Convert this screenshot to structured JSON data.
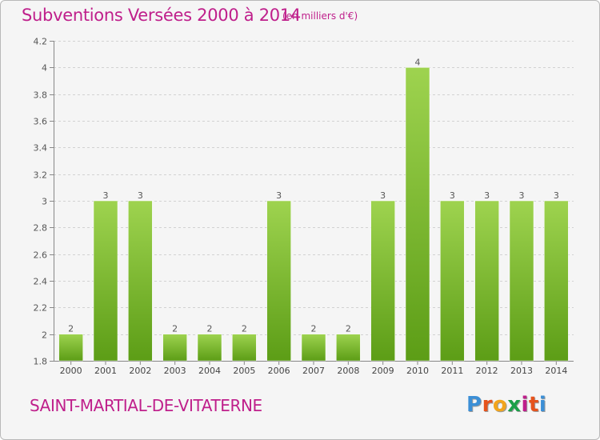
{
  "header": {
    "title": "Subventions Versées 2000 à 2014",
    "unit": "(en milliers d'€)"
  },
  "footer": {
    "commune": "SAINT-MARTIAL-DE-VITATERNE",
    "logo_letters": [
      "P",
      "r",
      "o",
      "x",
      "i",
      "t",
      "i"
    ],
    "logo_colors": [
      "#3c8fd6",
      "#e6531c",
      "#f2a51c",
      "#1c9f49",
      "#bf1f8b",
      "#e6531c",
      "#3c8fd6"
    ]
  },
  "chart_data": {
    "type": "bar",
    "categories": [
      "2000",
      "2001",
      "2002",
      "2003",
      "2004",
      "2005",
      "2006",
      "2007",
      "2008",
      "2009",
      "2010",
      "2011",
      "2012",
      "2013",
      "2014"
    ],
    "values": [
      2,
      3,
      3,
      2,
      2,
      2,
      3,
      2,
      2,
      3,
      4,
      3,
      3,
      3,
      3
    ],
    "data_labels": [
      "2",
      "3",
      "3",
      "2",
      "2",
      "2",
      "3",
      "2",
      "2",
      "3",
      "4",
      "3",
      "3",
      "3",
      "3"
    ],
    "ylim": [
      1.8,
      4.2
    ],
    "yticks": [
      1.8,
      2,
      2.2,
      2.4,
      2.6,
      2.8,
      3,
      3.2,
      3.4,
      3.6,
      3.8,
      4,
      4.2
    ],
    "ytick_labels": [
      "1.8",
      "2",
      "2.2",
      "2.4",
      "2.6",
      "2.8",
      "3",
      "3.2",
      "3.4",
      "3.6",
      "3.8",
      "4",
      "4.2"
    ],
    "grid": "dashed-horizontal",
    "bar_color": "#7cc12e"
  }
}
